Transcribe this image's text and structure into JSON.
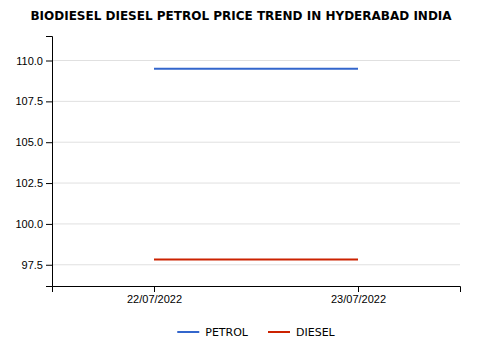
{
  "chart_data": {
    "type": "line",
    "title": "BIODIESEL DIESEL PETROL PRICE TREND IN HYDERABAD INDIA",
    "categories": [
      "22/07/2022",
      "23/07/2022"
    ],
    "series": [
      {
        "name": "PETROL",
        "color": "#3366cc",
        "values": [
          109.5,
          109.5
        ]
      },
      {
        "name": "DIESEL",
        "color": "#cc2200",
        "values": [
          97.82,
          97.82
        ]
      }
    ],
    "ylim": [
      96.2,
      111.5
    ],
    "yticks": [
      97.5,
      {
        "value": 100.0,
        "label": "100.0"
      },
      102.5,
      {
        "value": 105.0,
        "label": "105.0"
      },
      107.5,
      {
        "value": 110.0,
        "label": "110.0"
      }
    ],
    "grid": true,
    "legend": "bottom"
  }
}
